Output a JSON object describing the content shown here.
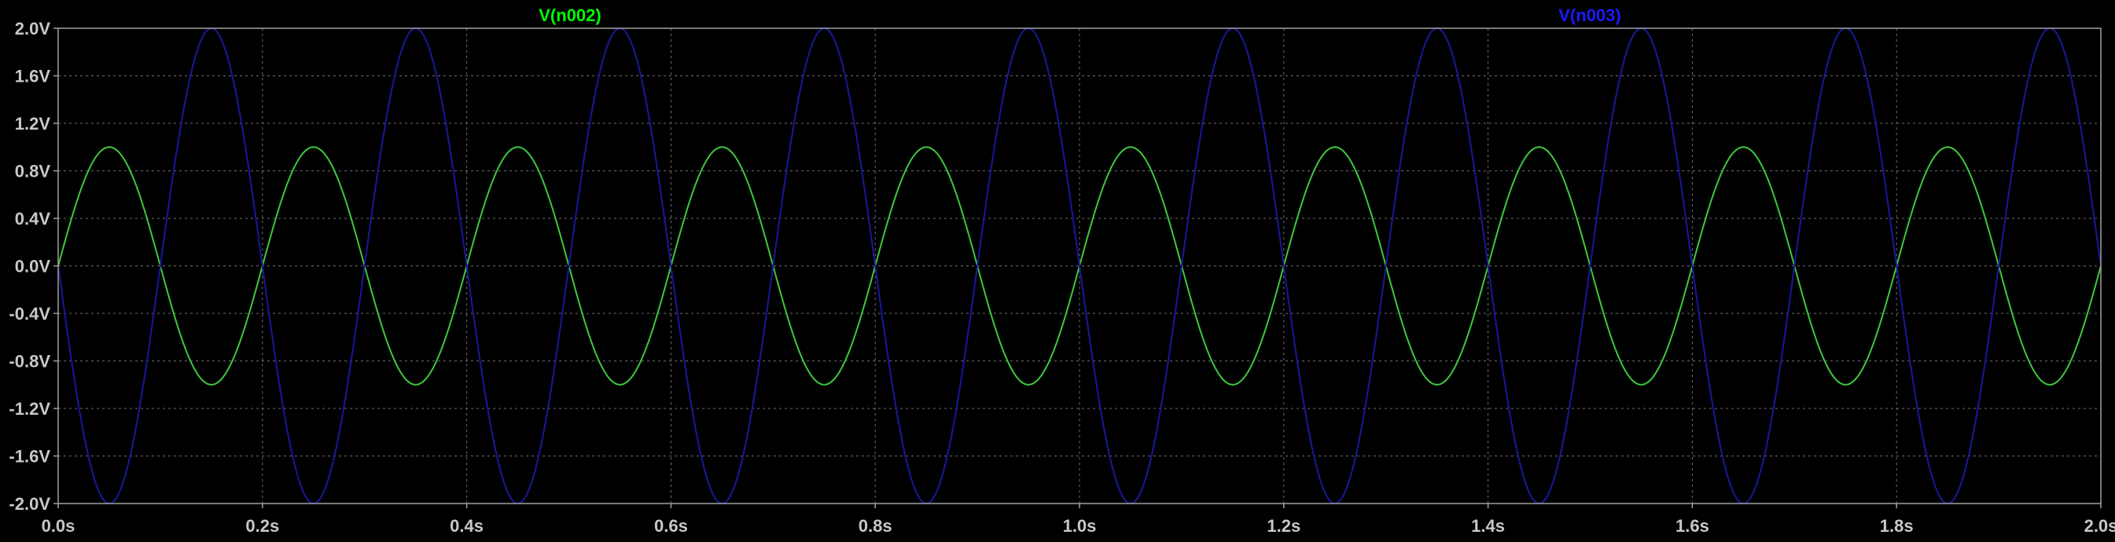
{
  "chart_data": {
    "type": "line",
    "title": "",
    "xlabel": "",
    "ylabel": "",
    "xlim": [
      0.0,
      2.0
    ],
    "ylim": [
      -2.0,
      2.0
    ],
    "grid": true,
    "x_ticks": [
      0.0,
      0.2,
      0.4,
      0.6,
      0.8,
      1.0,
      1.2,
      1.4,
      1.6,
      1.8,
      2.0
    ],
    "x_tick_labels": [
      "0.0s",
      "0.2s",
      "0.4s",
      "0.6s",
      "0.8s",
      "1.0s",
      "1.2s",
      "1.4s",
      "1.6s",
      "1.8s",
      "2.0s"
    ],
    "y_ticks": [
      2.0,
      1.6,
      1.2,
      0.8,
      0.4,
      0.0,
      -0.4,
      -0.8,
      -1.2,
      -1.6,
      -2.0
    ],
    "y_tick_labels": [
      "2.0V",
      "1.6V",
      "1.2V",
      "0.8V",
      "0.4V",
      "0.0V",
      "-0.4V",
      "-0.8V",
      "-1.2V",
      "-1.6V",
      "-2.0V"
    ],
    "series": [
      {
        "name": "V(n002)",
        "color": "#00ff00",
        "line_color": "#3ec83e",
        "waveform": "sine",
        "amplitude": 1.0,
        "frequency_hz": 5,
        "phase_deg": 0,
        "offset": 0.0
      },
      {
        "name": "V(n003)",
        "color": "#1a1aff",
        "line_color": "#18189c",
        "waveform": "sine",
        "amplitude": 2.0,
        "frequency_hz": 5,
        "phase_deg": 180,
        "offset": 0.0
      }
    ]
  },
  "colors": {
    "background": "#000000",
    "grid": "#6e6e6e",
    "frame": "#a0a0a0",
    "tick_label": "#c8c8c8"
  }
}
